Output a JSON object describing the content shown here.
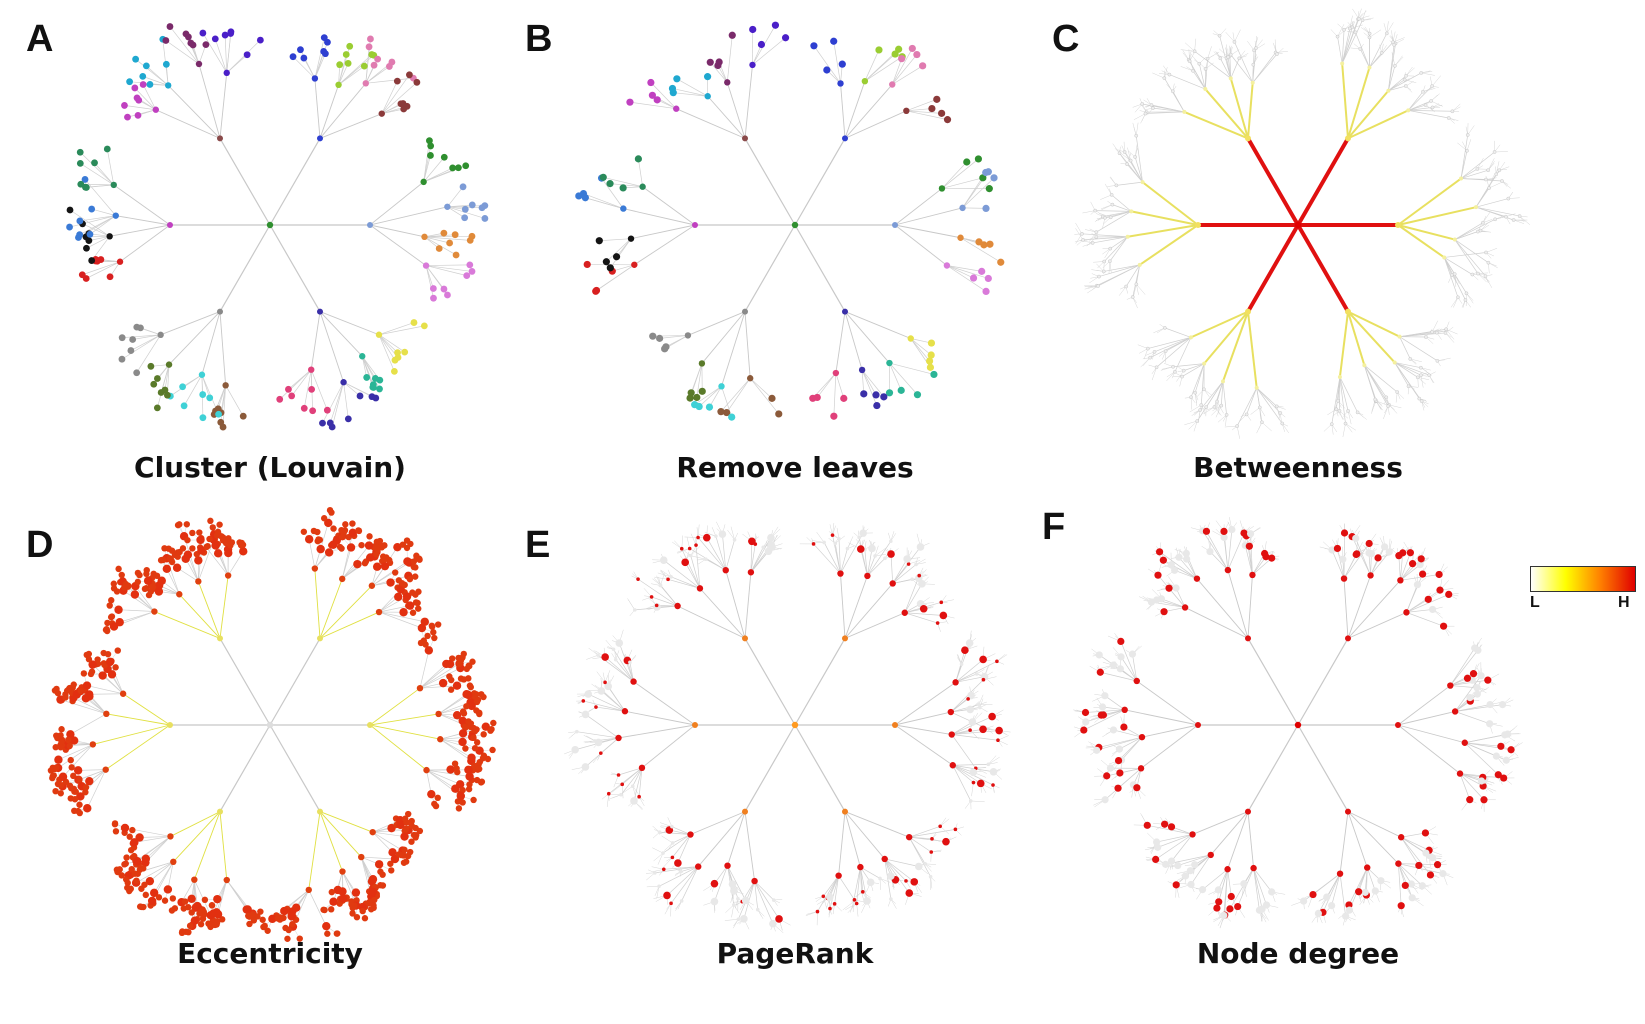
{
  "panels": [
    {
      "letter": "A",
      "caption": "Cluster (Louvain)",
      "style": "cluster"
    },
    {
      "letter": "B",
      "caption": "Remove leaves",
      "style": "leaves"
    },
    {
      "letter": "C",
      "caption": "Betweenness",
      "style": "betweenness"
    },
    {
      "letter": "D",
      "caption": "Eccentricity",
      "style": "eccentricity"
    },
    {
      "letter": "E",
      "caption": "PageRank",
      "style": "pagerank"
    },
    {
      "letter": "F",
      "caption": "Node degree",
      "style": "degree"
    }
  ],
  "legend": {
    "low_label": "L",
    "high_label": "H",
    "colors": [
      "#ffffff",
      "#ffff00",
      "#ff8000",
      "#e00000"
    ]
  },
  "cluster_colors": [
    "#2e3fd1",
    "#9acd32",
    "#e07bb0",
    "#8b3a3a",
    "#2f8f2f",
    "#7c9bd6",
    "#e08a3a",
    "#d97ad9",
    "#e6e04a",
    "#2bb596",
    "#3a2fa8",
    "#e0407a",
    "#8b5a3a",
    "#3fd1d6",
    "#5a7a2a",
    "#8a8a8a",
    "#d82020",
    "#141414",
    "#3a7ad6",
    "#2a8a5a",
    "#c040c0",
    "#1fa8d0",
    "#7a2a6a",
    "#4a1fc8",
    "#e6e64a",
    "#8a4a4a",
    "#7ac83a",
    "#3a2ad0",
    "#3fd140",
    "#d07a7a"
  ]
}
